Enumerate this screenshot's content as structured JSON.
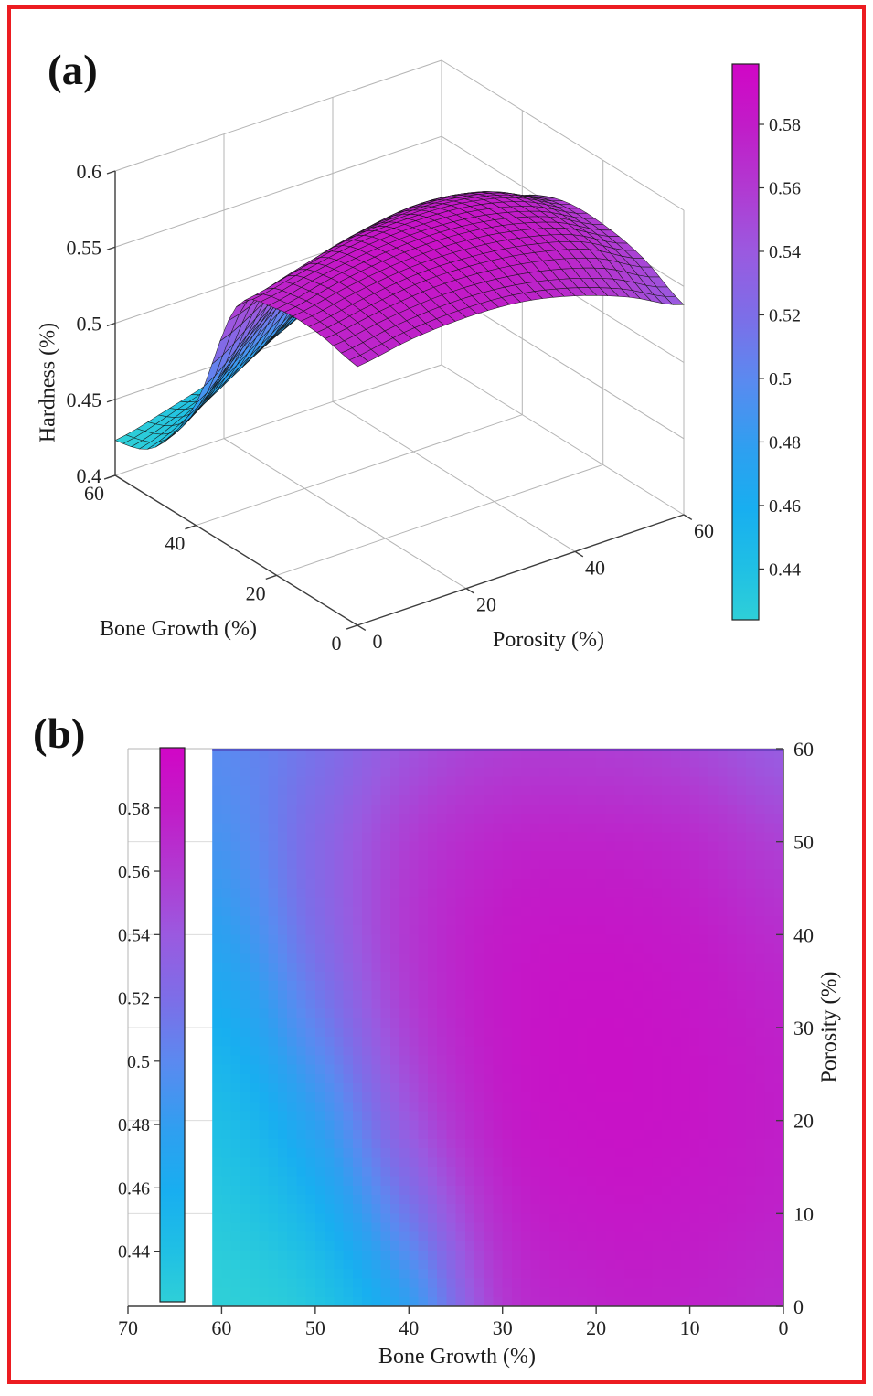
{
  "figure": {
    "border_color": "#ec1c21",
    "background": "#ffffff"
  },
  "panel_a": {
    "label": "(a)",
    "axes": {
      "xlabel": "Porosity (%)",
      "ylabel": "Bone Growth (%)",
      "zlabel": "Hardness (%)"
    },
    "x_ticks": [
      "0",
      "20",
      "40",
      "60"
    ],
    "y_ticks": [
      "0",
      "20",
      "40",
      "60"
    ],
    "z_ticks": [
      "0.4",
      "0.45",
      "0.5",
      "0.55",
      "0.6"
    ],
    "colorbar": {
      "side": "right",
      "ticks": [
        "0.58",
        "0.56",
        "0.54",
        "0.52",
        "0.5",
        "0.48",
        "0.46",
        "0.44"
      ],
      "range": [
        0.424,
        0.599
      ]
    }
  },
  "panel_b": {
    "label": "(b)",
    "axes": {
      "xlabel": "Bone Growth (%)",
      "ylabel": "Porosity (%)"
    },
    "x_ticks": [
      "70",
      "60",
      "50",
      "40",
      "30",
      "20",
      "10",
      "0"
    ],
    "y_ticks": [
      "0",
      "10",
      "20",
      "30",
      "40",
      "50",
      "60"
    ],
    "colorbar": {
      "side": "left-inside",
      "ticks": [
        "0.58",
        "0.56",
        "0.54",
        "0.52",
        "0.5",
        "0.48",
        "0.46",
        "0.44"
      ],
      "range": [
        0.424,
        0.599
      ]
    }
  },
  "colormap": {
    "name": "cool-like (cyan to magenta)",
    "range": [
      0.424,
      0.599
    ],
    "anchors": [
      [
        "0.00",
        "#2ecfd8"
      ],
      [
        "0.09",
        "#20c0e4"
      ],
      [
        "0.20",
        "#18aef0"
      ],
      [
        "0.31",
        "#2f9ff0"
      ],
      [
        "0.43",
        "#5a8af0"
      ],
      [
        "0.54",
        "#7b6fe8"
      ],
      [
        "0.66",
        "#9a5ae0"
      ],
      [
        "0.77",
        "#b03bd2"
      ],
      [
        "0.89",
        "#c11cc8"
      ],
      [
        "1.00",
        "#d106c6"
      ]
    ]
  },
  "chart_data": [
    {
      "type": "surface",
      "panel": "a",
      "xlabel": "Porosity (%)",
      "ylabel": "Bone Growth (%)",
      "zlabel": "Hardness (%)",
      "x_porosity": [
        0,
        10,
        20,
        30,
        40,
        50,
        60
      ],
      "y_bone_growth": [
        0,
        10,
        20,
        30,
        40,
        50,
        60
      ],
      "z_hardness_rows_by_bone_growth": [
        [
          0.57,
          0.576,
          0.578,
          0.576,
          0.568,
          0.555,
          0.538
        ],
        [
          0.576,
          0.582,
          0.586,
          0.585,
          0.58,
          0.57,
          0.552
        ],
        [
          0.575,
          0.583,
          0.588,
          0.589,
          0.585,
          0.575,
          0.558
        ],
        [
          0.56,
          0.57,
          0.579,
          0.582,
          0.581,
          0.573,
          0.557
        ],
        [
          0.48,
          0.513,
          0.54,
          0.555,
          0.561,
          0.557,
          0.544
        ],
        [
          0.435,
          0.455,
          0.478,
          0.503,
          0.52,
          0.524,
          0.517
        ],
        [
          0.423,
          0.432,
          0.443,
          0.458,
          0.476,
          0.49,
          0.499
        ]
      ],
      "xlim": [
        0,
        60
      ],
      "ylim": [
        0,
        60
      ],
      "zlim": [
        0.4,
        0.6
      ],
      "grid": true,
      "legend_position": "colorbar-right"
    },
    {
      "type": "heatmap",
      "panel": "b",
      "xlabel": "Bone Growth (%)",
      "ylabel": "Porosity (%)",
      "x_axis_direction": "reversed",
      "xlim_display": [
        70,
        0
      ],
      "ylim": [
        0,
        60
      ],
      "data_extent_bone_growth": [
        0,
        61
      ],
      "x_bone_growth": [
        0,
        10,
        20,
        30,
        40,
        50,
        60
      ],
      "y_porosity": [
        0,
        10,
        20,
        30,
        40,
        50,
        60
      ],
      "values_rows_by_bone_growth": [
        [
          0.57,
          0.576,
          0.578,
          0.576,
          0.568,
          0.555,
          0.538
        ],
        [
          0.576,
          0.582,
          0.586,
          0.585,
          0.58,
          0.57,
          0.552
        ],
        [
          0.575,
          0.583,
          0.588,
          0.589,
          0.585,
          0.575,
          0.558
        ],
        [
          0.56,
          0.57,
          0.579,
          0.582,
          0.581,
          0.573,
          0.557
        ],
        [
          0.48,
          0.513,
          0.54,
          0.555,
          0.561,
          0.557,
          0.544
        ],
        [
          0.435,
          0.455,
          0.478,
          0.503,
          0.52,
          0.524,
          0.517
        ],
        [
          0.423,
          0.432,
          0.443,
          0.458,
          0.476,
          0.49,
          0.499
        ]
      ],
      "grid": true,
      "legend_position": "colorbar-left-inside"
    }
  ]
}
